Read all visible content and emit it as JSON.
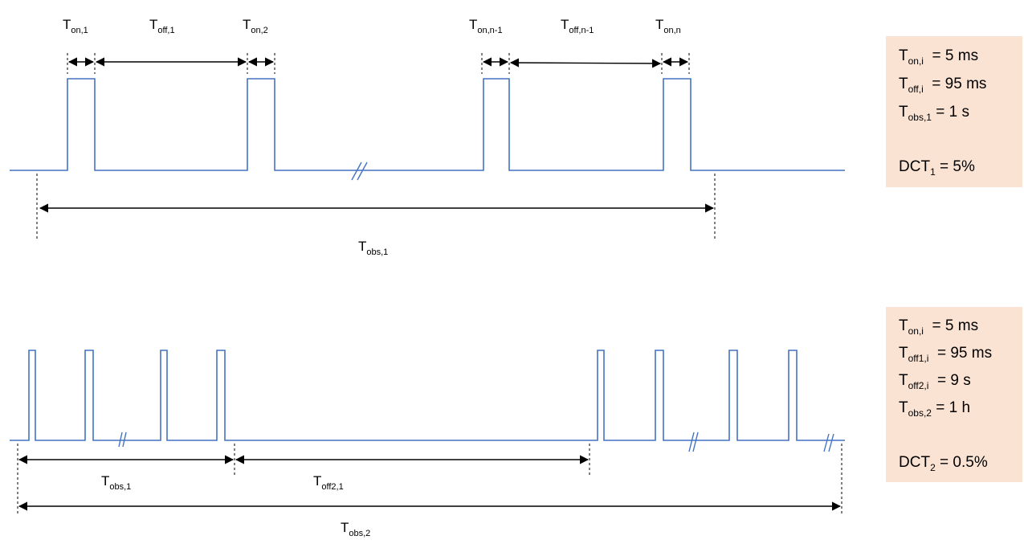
{
  "top": {
    "labels": {
      "t_on_1": {
        "base": "T",
        "sub": "on,1"
      },
      "t_off_1": {
        "base": "T",
        "sub": "off,1"
      },
      "t_on_2": {
        "base": "T",
        "sub": "on,2"
      },
      "t_on_n1": {
        "base": "T",
        "sub": "on,n-1"
      },
      "t_off_n1": {
        "base": "T",
        "sub": "off,n-1"
      },
      "t_on_n": {
        "base": "T",
        "sub": "on,n"
      },
      "t_obs_1": {
        "base": "T",
        "sub": "obs,1"
      }
    },
    "params": [
      {
        "base": "T",
        "sub": "on,i",
        "rest": "  = 5 ms"
      },
      {
        "base": "T",
        "sub": "off,i",
        "rest": "  = 95 ms"
      },
      {
        "base": "T",
        "sub": "obs,1",
        "rest": " = 1 s"
      },
      {
        "base": "DCT",
        "sub": "1",
        "rest": " = 5%"
      }
    ]
  },
  "bottom": {
    "labels": {
      "t_obs_1": {
        "base": "T",
        "sub": "obs,1"
      },
      "t_off2_1": {
        "base": "T",
        "sub": "off2,1"
      },
      "t_obs_2": {
        "base": "T",
        "sub": "obs,2"
      }
    },
    "params": [
      {
        "base": "T",
        "sub": "on,i",
        "rest": "  = 5 ms"
      },
      {
        "base": "T",
        "sub": "off1,i",
        "rest": "  = 95 ms"
      },
      {
        "base": "T",
        "sub": "off2,i",
        "rest": "  = 9 s"
      },
      {
        "base": "T",
        "sub": "obs,2",
        "rest": " = 1 h"
      },
      {
        "base": "DCT",
        "sub": "2",
        "rest": " = 0.5%"
      }
    ]
  },
  "colors": {
    "signal": "#4472c4",
    "panel": "#fbe3d4",
    "arrow": "#000000"
  }
}
